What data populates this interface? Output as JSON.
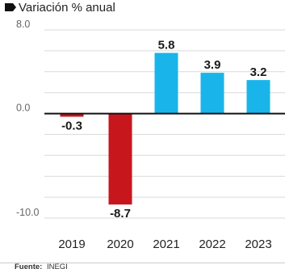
{
  "chart_data": {
    "type": "bar",
    "title": "Variación % anual",
    "categories": [
      "2019",
      "2020",
      "2021",
      "2022",
      "2023"
    ],
    "values": [
      -0.3,
      -8.7,
      5.8,
      3.9,
      3.2
    ],
    "value_labels": [
      "-0.3",
      "-8.7",
      "5.8",
      "3.9",
      "3.2"
    ],
    "ylim": [
      -10.0,
      8.0
    ],
    "yticks": [
      8.0,
      0.0,
      -10.0
    ],
    "ytick_labels": [
      "8.0",
      "0.0",
      "-10.0"
    ],
    "grid": true,
    "colors": {
      "positive": "#19b5ea",
      "negative": "#c8161d",
      "zero_line": "#111111",
      "grid": "#d9d9d9"
    },
    "source_prefix": "Fuente:",
    "source": "INEGI"
  }
}
